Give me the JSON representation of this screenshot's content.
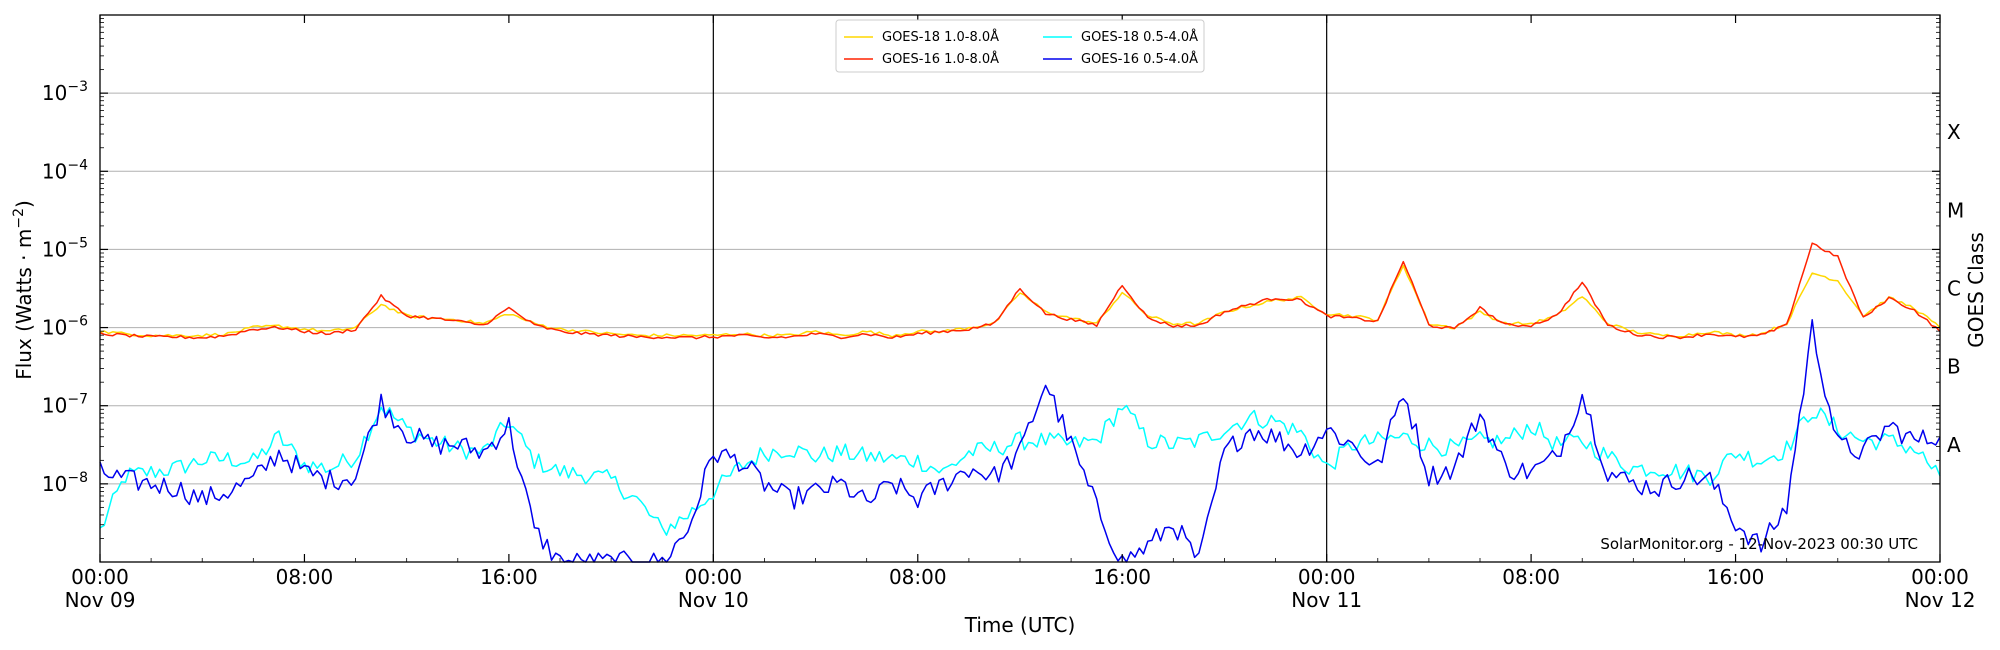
{
  "chart_data": {
    "type": "line",
    "title": "",
    "xlabel": "Time (UTC)",
    "ylabel": "Flux (Watts · m^-2)",
    "ylabel_right": "GOES Class",
    "yscale": "log",
    "ylim": [
      1e-09,
      0.01
    ],
    "xlim": [
      "2023-11-09 00:00",
      "2023-11-12 00:00"
    ],
    "grid": "horizontal at each decade",
    "legend_position": "upper center",
    "credit": "SolarMonitor.org - 12-Nov-2023 00:30 UTC",
    "x_ticks": [
      {
        "hour": 0,
        "line1": "00:00",
        "line2": "Nov 09"
      },
      {
        "hour": 8,
        "line1": "08:00",
        "line2": ""
      },
      {
        "hour": 16,
        "line1": "16:00",
        "line2": ""
      },
      {
        "hour": 24,
        "line1": "00:00",
        "line2": "Nov 10"
      },
      {
        "hour": 32,
        "line1": "08:00",
        "line2": ""
      },
      {
        "hour": 40,
        "line1": "16:00",
        "line2": ""
      },
      {
        "hour": 48,
        "line1": "00:00",
        "line2": "Nov 11"
      },
      {
        "hour": 56,
        "line1": "08:00",
        "line2": ""
      },
      {
        "hour": 64,
        "line1": "16:00",
        "line2": ""
      },
      {
        "hour": 72,
        "line1": "00:00",
        "line2": "Nov 12"
      }
    ],
    "day_boundaries_hours": [
      24,
      48
    ],
    "y_ticks": [
      {
        "exp": -8,
        "label": "10",
        "sup": "−8"
      },
      {
        "exp": -7,
        "label": "10",
        "sup": "−7"
      },
      {
        "exp": -6,
        "label": "10",
        "sup": "−6"
      },
      {
        "exp": -5,
        "label": "10",
        "sup": "−5"
      },
      {
        "exp": -4,
        "label": "10",
        "sup": "−4"
      },
      {
        "exp": -3,
        "label": "10",
        "sup": "−3"
      }
    ],
    "goes_classes": [
      {
        "label": "A",
        "exp": -7.5
      },
      {
        "label": "B",
        "exp": -6.5
      },
      {
        "label": "C",
        "exp": -5.5
      },
      {
        "label": "M",
        "exp": -4.5
      },
      {
        "label": "X",
        "exp": -3.5
      }
    ],
    "series": [
      {
        "name": "GOES-18 1.0-8.0Å",
        "color": "#ffd700",
        "hours": [
          0,
          1,
          2,
          3,
          4,
          5,
          6,
          7,
          8,
          9,
          10,
          11,
          12,
          13,
          14,
          15,
          16,
          17,
          18,
          19,
          20,
          21,
          22,
          23,
          24,
          25,
          26,
          27,
          28,
          29,
          30,
          31,
          32,
          33,
          34,
          35,
          36,
          37,
          38,
          39,
          40,
          41,
          42,
          43,
          44,
          45,
          46,
          47,
          48,
          49,
          50,
          51,
          52,
          53,
          54,
          55,
          56,
          57,
          58,
          59,
          60,
          61,
          62,
          63,
          64,
          65,
          66,
          67,
          68,
          69,
          70,
          71,
          72
        ],
        "log_flux": [
          -6.05,
          -6.08,
          -6.1,
          -6.1,
          -6.1,
          -6.08,
          -6.0,
          -5.98,
          -6.02,
          -6.05,
          -6.0,
          -5.7,
          -5.85,
          -5.88,
          -5.9,
          -5.95,
          -5.82,
          -5.95,
          -6.02,
          -6.05,
          -6.08,
          -6.1,
          -6.1,
          -6.1,
          -6.1,
          -6.08,
          -6.1,
          -6.1,
          -6.05,
          -6.1,
          -6.05,
          -6.1,
          -6.05,
          -6.05,
          -6.0,
          -5.95,
          -5.55,
          -5.8,
          -5.88,
          -5.95,
          -5.55,
          -5.85,
          -5.95,
          -5.95,
          -5.8,
          -5.72,
          -5.65,
          -5.62,
          -5.82,
          -5.85,
          -5.9,
          -5.2,
          -5.95,
          -6.0,
          -5.8,
          -5.95,
          -5.95,
          -5.85,
          -5.6,
          -5.95,
          -6.05,
          -6.1,
          -6.1,
          -6.05,
          -6.1,
          -6.08,
          -5.95,
          -5.3,
          -5.4,
          -5.85,
          -5.62,
          -5.75,
          -6.0
        ]
      },
      {
        "name": "GOES-16 1.0-8.0Å",
        "color": "#ff2200",
        "hours": [
          0,
          1,
          2,
          3,
          4,
          5,
          6,
          7,
          8,
          9,
          10,
          11,
          12,
          13,
          14,
          15,
          16,
          17,
          18,
          19,
          20,
          21,
          22,
          23,
          24,
          25,
          26,
          27,
          28,
          29,
          30,
          31,
          32,
          33,
          34,
          35,
          36,
          37,
          38,
          39,
          40,
          41,
          42,
          43,
          44,
          45,
          46,
          47,
          48,
          49,
          50,
          51,
          52,
          53,
          54,
          55,
          56,
          57,
          58,
          59,
          60,
          61,
          62,
          63,
          64,
          65,
          66,
          67,
          68,
          69,
          70,
          71,
          72
        ],
        "log_flux": [
          -6.08,
          -6.1,
          -6.12,
          -6.12,
          -6.13,
          -6.1,
          -6.02,
          -6.0,
          -6.05,
          -6.08,
          -6.02,
          -5.6,
          -5.85,
          -5.88,
          -5.92,
          -5.97,
          -5.75,
          -5.97,
          -6.05,
          -6.08,
          -6.1,
          -6.12,
          -6.12,
          -6.13,
          -6.12,
          -6.1,
          -6.13,
          -6.12,
          -6.08,
          -6.12,
          -6.08,
          -6.13,
          -6.08,
          -6.05,
          -6.02,
          -5.95,
          -5.5,
          -5.82,
          -5.9,
          -5.97,
          -5.45,
          -5.88,
          -5.98,
          -5.97,
          -5.8,
          -5.7,
          -5.62,
          -5.65,
          -5.85,
          -5.88,
          -5.92,
          -5.15,
          -5.97,
          -6.02,
          -5.75,
          -5.97,
          -5.97,
          -5.85,
          -5.42,
          -5.97,
          -6.08,
          -6.12,
          -6.12,
          -6.08,
          -6.12,
          -6.1,
          -5.97,
          -4.92,
          -5.1,
          -5.88,
          -5.62,
          -5.78,
          -6.05
        ]
      },
      {
        "name": "GOES-18 0.5-4.0Å",
        "color": "#00ffff",
        "hours": [
          0,
          1,
          2,
          3,
          4,
          5,
          6,
          7,
          8,
          9,
          10,
          11,
          12,
          13,
          14,
          15,
          16,
          17,
          18,
          19,
          20,
          21,
          22,
          23,
          24,
          25,
          26,
          27,
          28,
          29,
          30,
          31,
          32,
          33,
          34,
          35,
          36,
          37,
          38,
          39,
          40,
          41,
          42,
          43,
          44,
          45,
          46,
          47,
          48,
          49,
          50,
          51,
          52,
          53,
          54,
          55,
          56,
          57,
          58,
          59,
          60,
          61,
          62,
          63,
          64,
          65,
          66,
          67,
          68,
          69,
          70,
          71,
          72
        ],
        "log_flux": [
          -8.6,
          -7.9,
          -7.85,
          -7.8,
          -7.7,
          -7.68,
          -7.72,
          -7.4,
          -7.75,
          -7.8,
          -7.65,
          -7.0,
          -7.3,
          -7.45,
          -7.55,
          -7.6,
          -7.2,
          -7.7,
          -7.85,
          -7.88,
          -7.95,
          -8.2,
          -8.6,
          -8.4,
          -8.1,
          -7.8,
          -7.6,
          -7.55,
          -7.65,
          -7.6,
          -7.65,
          -7.68,
          -7.7,
          -7.85,
          -7.6,
          -7.55,
          -7.45,
          -7.45,
          -7.5,
          -7.45,
          -7.0,
          -7.45,
          -7.5,
          -7.45,
          -7.3,
          -7.15,
          -7.2,
          -7.35,
          -7.8,
          -7.5,
          -7.45,
          -7.4,
          -7.5,
          -7.55,
          -7.45,
          -7.45,
          -7.25,
          -7.5,
          -7.45,
          -7.65,
          -7.8,
          -7.8,
          -7.85,
          -7.9,
          -7.6,
          -7.7,
          -7.55,
          -7.05,
          -7.3,
          -7.45,
          -7.45,
          -7.55,
          -7.9
        ]
      },
      {
        "name": "GOES-16 0.5-4.0Å",
        "color": "#0000ee",
        "hours": [
          0,
          1,
          2,
          3,
          4,
          5,
          6,
          7,
          8,
          9,
          10,
          11,
          12,
          13,
          14,
          15,
          16,
          17,
          18,
          19,
          20,
          21,
          22,
          23,
          24,
          25,
          26,
          27,
          28,
          29,
          30,
          31,
          32,
          33,
          34,
          35,
          36,
          37,
          38,
          39,
          40,
          41,
          42,
          43,
          44,
          45,
          46,
          47,
          48,
          49,
          50,
          51,
          52,
          53,
          54,
          55,
          56,
          57,
          58,
          59,
          60,
          61,
          62,
          63,
          64,
          65,
          66,
          67,
          68,
          69,
          70,
          71,
          72
        ],
        "log_flux": [
          -7.85,
          -7.95,
          -8.0,
          -8.05,
          -8.2,
          -8.1,
          -7.95,
          -7.6,
          -7.85,
          -7.95,
          -7.9,
          -6.95,
          -7.35,
          -7.5,
          -7.5,
          -7.6,
          -7.25,
          -8.6,
          -9.0,
          -9.0,
          -9.0,
          -9.0,
          -9.0,
          -8.6,
          -7.6,
          -7.7,
          -8.0,
          -8.2,
          -8.1,
          -8.0,
          -8.25,
          -8.0,
          -8.2,
          -8.0,
          -7.8,
          -7.9,
          -7.6,
          -6.7,
          -7.5,
          -8.3,
          -9.0,
          -8.8,
          -8.5,
          -9.0,
          -7.6,
          -7.3,
          -7.4,
          -7.6,
          -7.3,
          -7.5,
          -7.8,
          -6.8,
          -7.9,
          -7.8,
          -7.1,
          -7.8,
          -7.85,
          -7.65,
          -6.85,
          -7.85,
          -8.0,
          -8.05,
          -7.9,
          -7.95,
          -8.5,
          -8.8,
          -8.3,
          -6.0,
          -7.5,
          -7.6,
          -7.25,
          -7.45,
          -7.4
        ]
      }
    ]
  },
  "legend": {
    "items": [
      {
        "label": "GOES-18 1.0-8.0Å",
        "color": "#ffd700"
      },
      {
        "label": "GOES-16 1.0-8.0Å",
        "color": "#ff2200"
      },
      {
        "label": "GOES-18 0.5-4.0Å",
        "color": "#00ffff"
      },
      {
        "label": "GOES-16 0.5-4.0Å",
        "color": "#0000ee"
      }
    ]
  },
  "labels": {
    "xlabel": "Time (UTC)",
    "ylabel": "Flux (Watts · m",
    "ylabel_sup": "−2",
    "ylabel_tail": ")",
    "ylabel_right": "GOES Class",
    "credit": "SolarMonitor.org - 12-Nov-2023 00:30 UTC"
  }
}
